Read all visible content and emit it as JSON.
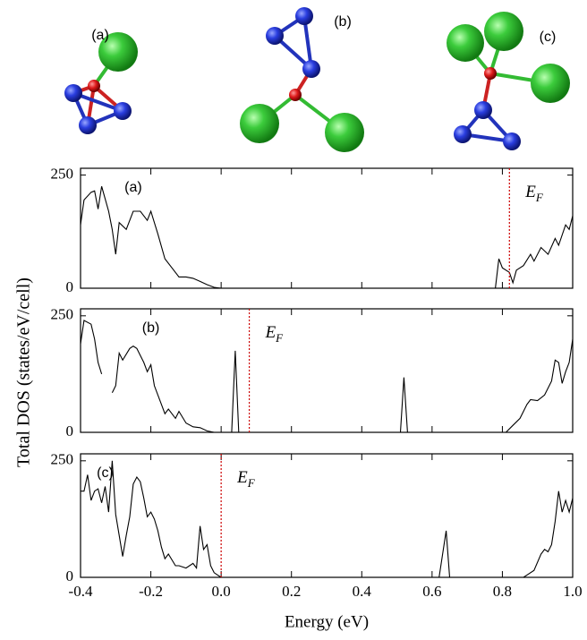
{
  "structures": [
    {
      "label": "(a)"
    },
    {
      "label": "(b)"
    },
    {
      "label": "(c)"
    }
  ],
  "shared_axes": {
    "xlabel": "Energy (eV)",
    "ylabel": "Total DOS (states/eV/cell)"
  },
  "chart_data": [
    {
      "type": "line",
      "panel_label": "(a)",
      "color": "#000000",
      "x": [
        -0.4,
        -0.39,
        -0.37,
        -0.36,
        -0.35,
        -0.34,
        -0.32,
        -0.31,
        -0.3,
        -0.29,
        -0.27,
        -0.25,
        -0.23,
        -0.21,
        -0.2,
        -0.18,
        -0.16,
        -0.14,
        -0.12,
        -0.1,
        -0.08,
        -0.06,
        -0.04,
        -0.02,
        0.0,
        null,
        0.78,
        0.79,
        0.8,
        0.82,
        0.83,
        0.84,
        0.86,
        0.88,
        0.89,
        0.91,
        0.93,
        0.95,
        0.96,
        0.98,
        0.99,
        1.0
      ],
      "values": [
        140,
        195,
        212,
        215,
        175,
        225,
        170,
        130,
        75,
        145,
        130,
        170,
        170,
        150,
        170,
        120,
        65,
        45,
        25,
        25,
        22,
        15,
        8,
        2,
        0,
        null,
        0,
        65,
        45,
        35,
        12,
        40,
        50,
        75,
        60,
        90,
        75,
        110,
        95,
        140,
        130,
        160
      ],
      "xlim": [
        -0.4,
        1.0
      ],
      "xticks": [
        -0.4,
        -0.2,
        0,
        0.2,
        0.4,
        0.6,
        0.8,
        1
      ],
      "ylim": [
        0,
        265
      ],
      "yticks": [
        0,
        250
      ],
      "fermi": {
        "value": 0.82,
        "color": "#cc0000",
        "label": "E",
        "subscript": "F"
      }
    },
    {
      "type": "line",
      "panel_label": "(b)",
      "color": "#000000",
      "x": [
        -0.4,
        -0.39,
        -0.37,
        -0.36,
        -0.35,
        -0.34,
        null,
        -0.31,
        -0.3,
        -0.29,
        -0.28,
        -0.26,
        -0.25,
        -0.24,
        -0.23,
        -0.22,
        -0.21,
        -0.2,
        -0.19,
        -0.17,
        -0.16,
        -0.15,
        -0.13,
        -0.12,
        -0.1,
        -0.08,
        -0.06,
        -0.04,
        -0.02,
        null,
        0.03,
        0.04,
        0.05,
        null,
        0.51,
        0.52,
        0.53,
        null,
        0.81,
        0.83,
        0.85,
        0.87,
        0.88,
        0.9,
        0.92,
        0.94,
        0.95,
        0.96,
        0.97,
        0.98,
        0.99,
        1.0
      ],
      "values": [
        190,
        240,
        232,
        200,
        150,
        125,
        null,
        85,
        100,
        170,
        155,
        180,
        185,
        180,
        165,
        150,
        130,
        145,
        100,
        60,
        40,
        50,
        30,
        45,
        20,
        12,
        10,
        3,
        0,
        null,
        0,
        175,
        0,
        null,
        0,
        118,
        0,
        null,
        0,
        15,
        30,
        60,
        70,
        68,
        80,
        110,
        155,
        150,
        105,
        130,
        150,
        200
      ],
      "xlim": [
        -0.4,
        1.0
      ],
      "xticks": [
        -0.4,
        -0.2,
        0,
        0.2,
        0.4,
        0.6,
        0.8,
        1
      ],
      "ylim": [
        0,
        265
      ],
      "yticks": [
        0,
        250
      ],
      "fermi": {
        "value": 0.08,
        "color": "#cc0000",
        "label": "E",
        "subscript": "F"
      }
    },
    {
      "type": "line",
      "panel_label": "(c)",
      "color": "#000000",
      "x": [
        -0.4,
        -0.39,
        -0.38,
        -0.37,
        -0.36,
        -0.35,
        -0.34,
        -0.33,
        -0.32,
        -0.31,
        -0.3,
        -0.29,
        -0.28,
        -0.27,
        -0.26,
        -0.25,
        -0.24,
        -0.23,
        -0.22,
        -0.21,
        -0.2,
        -0.19,
        -0.18,
        -0.17,
        -0.16,
        -0.15,
        -0.13,
        -0.12,
        -0.1,
        -0.08,
        -0.07,
        -0.06,
        -0.05,
        -0.04,
        -0.03,
        -0.02,
        -0.01,
        0.0,
        null,
        0.62,
        0.64,
        0.65,
        null,
        0.86,
        0.87,
        0.89,
        0.91,
        0.92,
        0.93,
        0.94,
        0.95,
        0.96,
        0.97,
        0.98,
        0.99,
        1.0
      ],
      "values": [
        185,
        185,
        220,
        165,
        185,
        190,
        160,
        195,
        140,
        250,
        135,
        90,
        45,
        90,
        130,
        200,
        215,
        205,
        170,
        130,
        140,
        125,
        100,
        65,
        40,
        50,
        25,
        25,
        20,
        30,
        20,
        110,
        60,
        70,
        25,
        10,
        5,
        0,
        null,
        0,
        100,
        0,
        null,
        0,
        5,
        15,
        50,
        60,
        55,
        70,
        120,
        185,
        140,
        165,
        140,
        170
      ],
      "xlim": [
        -0.4,
        1.0
      ],
      "xticks": [
        -0.4,
        -0.2,
        {
          "value": 0,
          "label": "0.0"
        },
        0.2,
        0.4,
        0.6,
        0.8,
        {
          "value": 1,
          "label": "1.0"
        }
      ],
      "ylim": [
        0,
        265
      ],
      "yticks": [
        0,
        250
      ],
      "fermi": {
        "value": 0.0,
        "color": "#cc0000",
        "label": "E",
        "subscript": "F"
      }
    }
  ]
}
